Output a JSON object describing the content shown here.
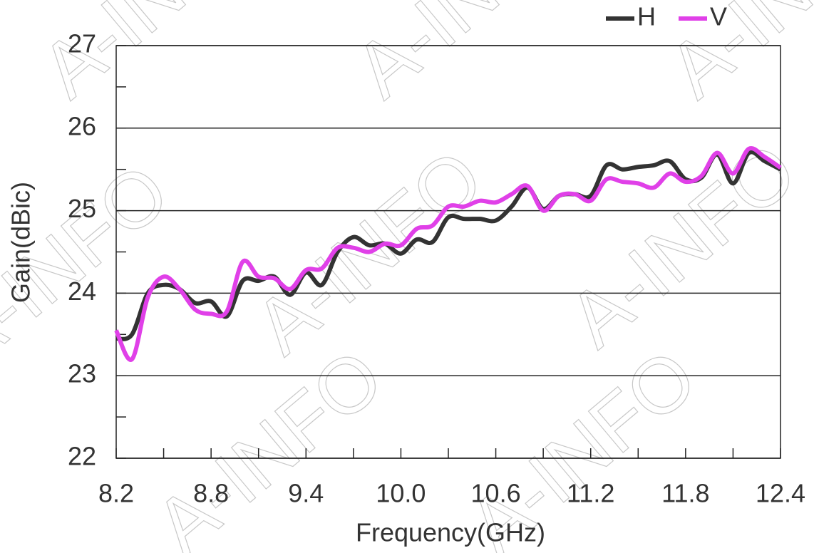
{
  "chart_data": {
    "type": "line",
    "xlabel": "Frequency(GHz)",
    "ylabel": "Gain(dBic)",
    "watermark": "A-INFO",
    "x": [
      8.2,
      8.3,
      8.4,
      8.5,
      8.6,
      8.7,
      8.8,
      8.9,
      9.0,
      9.1,
      9.2,
      9.3,
      9.4,
      9.5,
      9.6,
      9.7,
      9.8,
      9.9,
      10.0,
      10.1,
      10.2,
      10.3,
      10.4,
      10.5,
      10.6,
      10.7,
      10.8,
      10.9,
      11.0,
      11.1,
      11.2,
      11.3,
      11.4,
      11.5,
      11.6,
      11.7,
      11.8,
      11.9,
      12.0,
      12.1,
      12.2,
      12.3,
      12.4
    ],
    "series": [
      {
        "name": "H",
        "color": "#333333",
        "values": [
          23.45,
          23.5,
          24.0,
          24.1,
          24.05,
          23.88,
          23.9,
          23.72,
          24.15,
          24.15,
          24.2,
          23.98,
          24.25,
          24.1,
          24.5,
          24.68,
          24.58,
          24.6,
          24.48,
          24.65,
          24.62,
          24.92,
          24.9,
          24.9,
          24.88,
          25.05,
          25.28,
          25.02,
          25.18,
          25.2,
          25.18,
          25.55,
          25.5,
          25.53,
          25.55,
          25.6,
          25.38,
          25.4,
          25.68,
          25.33,
          25.7,
          25.6,
          25.5
        ]
      },
      {
        "name": "V",
        "color": "#e040e8",
        "values": [
          23.55,
          23.2,
          23.95,
          24.2,
          24.05,
          23.8,
          23.75,
          23.78,
          24.38,
          24.2,
          24.18,
          24.05,
          24.28,
          24.3,
          24.55,
          24.55,
          24.5,
          24.6,
          24.58,
          24.78,
          24.82,
          25.05,
          25.05,
          25.12,
          25.1,
          25.2,
          25.3,
          25.0,
          25.18,
          25.2,
          25.12,
          25.38,
          25.35,
          25.33,
          25.28,
          25.45,
          25.35,
          25.42,
          25.7,
          25.45,
          25.75,
          25.65,
          25.52
        ]
      }
    ],
    "xlim": [
      8.2,
      12.4
    ],
    "ylim": [
      22,
      27
    ],
    "xticks": [
      8.2,
      8.8,
      9.4,
      {
        "value": 10,
        "label": "10.0"
      },
      10.6,
      11.2,
      11.8,
      12.4
    ],
    "xminorticks": [
      8.5,
      9.1,
      9.7,
      10.3,
      10.9,
      11.5,
      12.1
    ],
    "yticks": [
      22,
      23,
      24,
      25,
      26,
      27
    ],
    "yminorticks": [
      22.5,
      23.5,
      24.5,
      25.5,
      26.5
    ],
    "grid": true,
    "legend": "upper right"
  }
}
